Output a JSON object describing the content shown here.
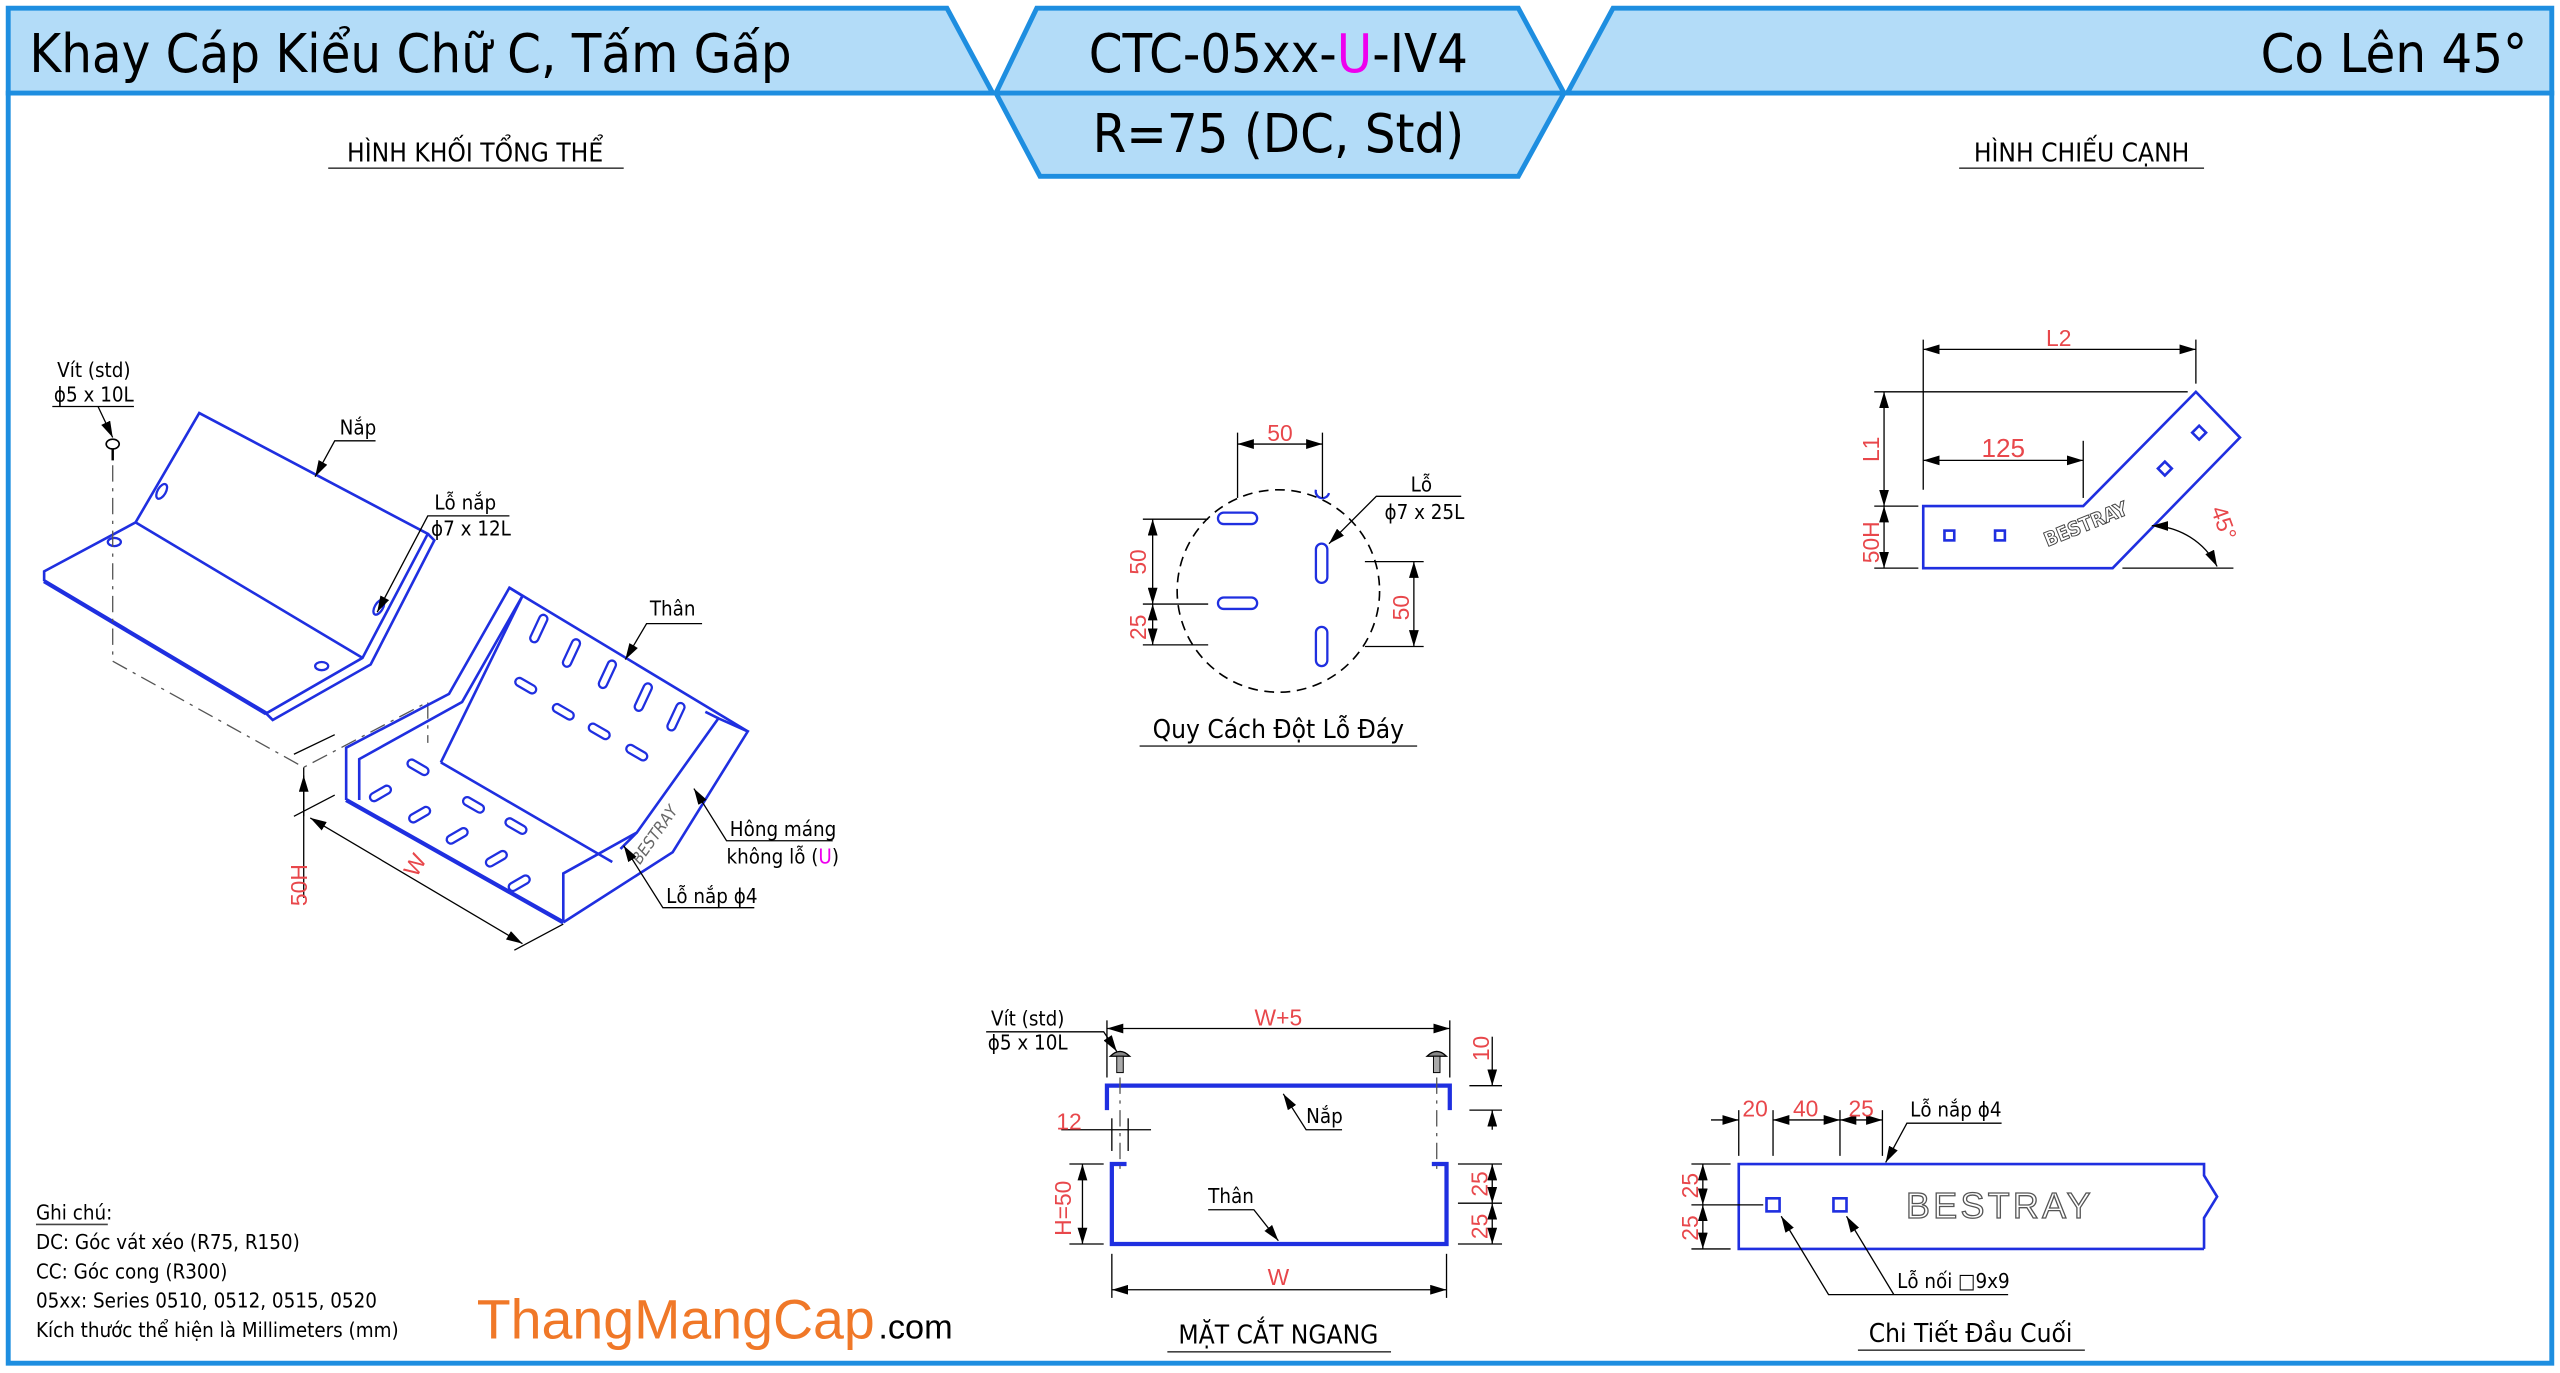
{
  "header": {
    "left_title": "Khay Cáp Kiểu Chữ C, Tấm Gấp",
    "code_prefix": "CTC-05xx-",
    "code_highlight": "U",
    "code_suffix": "-IV4",
    "radius_spec": "R=75 (DC, Std)",
    "right_title": "Co Lên 45°"
  },
  "colors": {
    "header_fill": "#b3dcf8",
    "frame": "#1e8ee0",
    "part_lines": "#1f2fe0",
    "dimension_text": "#e8474b",
    "highlight": "#ee00ee",
    "logo": "#f07828"
  },
  "iso_view": {
    "title": "HÌNH KHỐI TỔNG THỂ",
    "screw_label_1": "Vít (std)",
    "screw_label_2": "ϕ5 x 10L",
    "lid_label": "Nắp",
    "lid_hole_label_1": "Lỗ nắp",
    "lid_hole_label_2": "ϕ7 x 12L",
    "body_label": "Thân",
    "side_label_1": "Hông máng",
    "side_label_2_prefix": "không lỗ (",
    "side_label_2_highlight": "U",
    "side_label_2_suffix": ")",
    "cover_hole_label": "Lỗ nắp ϕ4",
    "dim_width": "W",
    "dim_height": "50H",
    "brand": "BESTRAY"
  },
  "hole_pattern": {
    "title": "Quy Cách Đột Lỗ Đáy",
    "dim_top": "50",
    "dim_left_upper": "50",
    "dim_left_lower": "25",
    "dim_right": "50",
    "hole_label_1": "Lỗ",
    "hole_label_2": "ϕ7 x 25L"
  },
  "side_view": {
    "title": "HÌNH CHIẾU CẠNH",
    "dim_l2": "L2",
    "dim_125": "125",
    "dim_l1": "L1",
    "dim_height": "50H",
    "dim_angle": "45°",
    "brand": "BESTRAY"
  },
  "cross_section": {
    "title": "MẶT CẮT NGANG",
    "screw_label_1": "Vít (std)",
    "screw_label_2": "ϕ5 x 10L",
    "dim_top": "W+5",
    "dim_bottom": "W",
    "dim_10": "10",
    "dim_12": "12",
    "dim_h": "H=50",
    "dim_25_upper": "25",
    "dim_25_lower": "25",
    "lid_label": "Nắp",
    "body_label": "Thân"
  },
  "end_detail": {
    "title": "Chi Tiết Đầu Cuối",
    "dim_20": "20",
    "dim_40": "40",
    "dim_25": "25",
    "dim_left_upper": "25",
    "dim_left_lower": "25",
    "cover_hole_label": "Lỗ nắp ϕ4",
    "joint_hole_label": "Lỗ nối □9x9",
    "brand": "BESTRAY"
  },
  "notes": {
    "heading": "Ghi chú:",
    "lines": [
      "DC: Góc vát xéo (R75, R150)",
      "CC: Góc cong (R300)",
      "05xx: Series 0510, 0512, 0515, 0520",
      "Kích thước thể hiện là Millimeters (mm)"
    ]
  },
  "logo": {
    "main": "ThangMangCap",
    "suffix": ".com"
  }
}
